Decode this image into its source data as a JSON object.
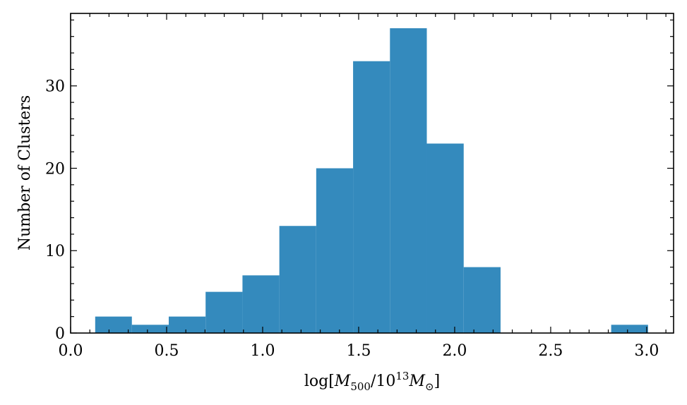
{
  "chart_data": {
    "type": "bar",
    "subtype": "histogram",
    "xlabel_parts": {
      "prefix": "log[",
      "m": "M",
      "sub_500": "500",
      "slash_ten": "/10",
      "sup_13": "13",
      "m2": "M",
      "sub_sun": "⊙",
      "suffix": "]"
    },
    "ylabel": "Number of Clusters",
    "xlim": [
      0.0,
      3.14
    ],
    "ylim": [
      0,
      38.8
    ],
    "x_ticks": [
      "0.0",
      "0.5",
      "1.0",
      "1.5",
      "2.0",
      "2.5",
      "3.0"
    ],
    "x_tick_values": [
      0.0,
      0.5,
      1.0,
      1.5,
      2.0,
      2.5,
      3.0
    ],
    "y_ticks": [
      "0",
      "10",
      "20",
      "30"
    ],
    "y_tick_values": [
      0,
      10,
      20,
      30
    ],
    "bin_edges": [
      0.128,
      0.319,
      0.511,
      0.703,
      0.895,
      1.087,
      1.279,
      1.471,
      1.663,
      1.855,
      2.047,
      2.239,
      2.431,
      2.623,
      2.815,
      3.007
    ],
    "counts": [
      2,
      1,
      2,
      5,
      7,
      13,
      20,
      33,
      37,
      23,
      8,
      0,
      0,
      0,
      1
    ],
    "bar_color": "#348abd",
    "grid": false
  }
}
